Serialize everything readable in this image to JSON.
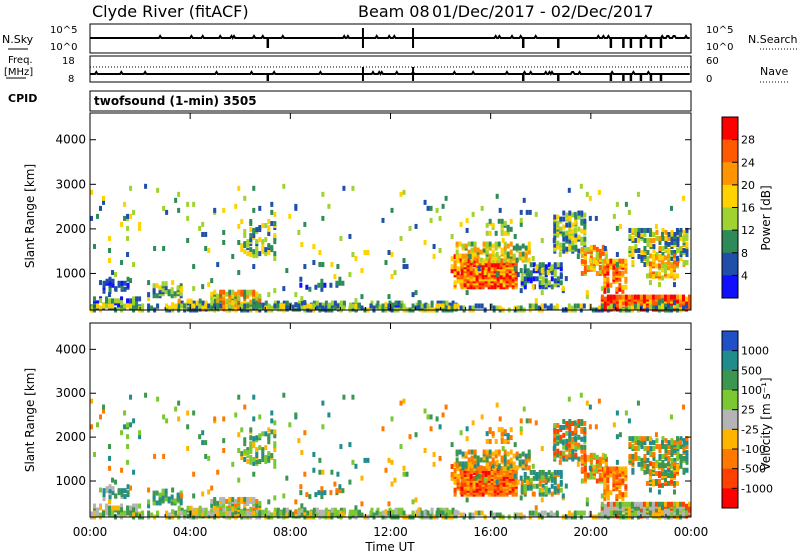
{
  "header": {
    "title": "Clyde River (fitACF)",
    "beam": "Beam 08",
    "date_range": "01/Dec/2017 - 02/Dec/2017"
  },
  "top_panels": {
    "nsky_label": "N.Sky",
    "nsky_ticks": [
      "10^5",
      "10^0"
    ],
    "nsearch_label": "N.Search",
    "nsearch_ticks": [
      "10^5",
      "10^0"
    ],
    "freq_label": "Freq.",
    "freq_unit": "[MHz]",
    "freq_ticks": [
      "18",
      "8"
    ],
    "nave_label": "Nave",
    "nave_ticks": [
      "60",
      "0"
    ],
    "cpid_label": "CPID",
    "cpid_value": "twofsound (1-min) 3505"
  },
  "chart_data": [
    {
      "type": "heatmap",
      "name": "power",
      "ylabel": "Slant Range [km]",
      "yticks": [
        1000,
        2000,
        3000,
        4000
      ],
      "ylim": [
        180,
        4600
      ],
      "colorbar": {
        "label": "Power [dB]",
        "ticks": [
          "28",
          "24",
          "20",
          "16",
          "12",
          "8",
          "4"
        ],
        "colors": [
          "#ff0000",
          "#ff5a00",
          "#ff9400",
          "#ffd200",
          "#a0d232",
          "#2e8b57",
          "#1f4fa8",
          "#1010ff"
        ]
      },
      "xticks": [
        "00:00",
        "04:00",
        "08:00",
        "12:00",
        "16:00",
        "20:00",
        "00:00"
      ],
      "xlabel": "Time UT"
    },
    {
      "type": "heatmap",
      "name": "velocity",
      "ylabel": "Slant Range [km]",
      "yticks": [
        1000,
        2000,
        3000,
        4000
      ],
      "ylim": [
        180,
        4600
      ],
      "colorbar": {
        "label": "Velocity [m s⁻¹]",
        "ticks": [
          "1000",
          "500",
          "100",
          "25",
          "-25",
          "-100",
          "-500",
          "-1000"
        ],
        "colors": [
          "#2050c8",
          "#208c8c",
          "#3c9650",
          "#7ac832",
          "#b4b4b4",
          "#ffb400",
          "#ff7800",
          "#ff4000",
          "#ff0000"
        ]
      },
      "xticks": [
        "00:00",
        "04:00",
        "08:00",
        "12:00",
        "16:00",
        "20:00",
        "00:00"
      ],
      "xlabel": "Time UT"
    }
  ]
}
